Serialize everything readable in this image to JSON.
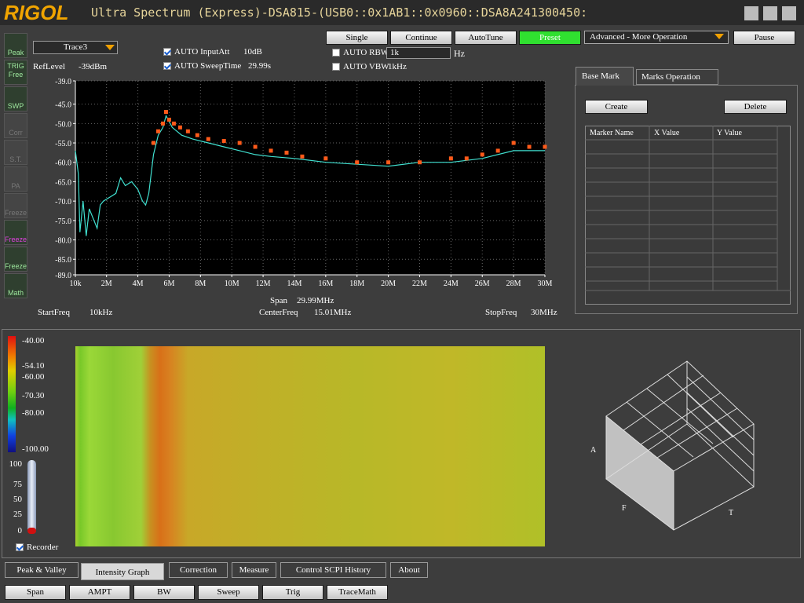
{
  "title_bar": {
    "logo": "RIGOL",
    "title": "Ultra Spectrum (Express)-DSA815-(USB0::0x1AB1::0x0960::DSA8A241300450:"
  },
  "sidebar": [
    "Peak",
    "TRIG",
    "Free",
    "SWP",
    "Corr",
    "S.T.",
    "PA",
    "Freeze",
    "Freeze",
    "Freeze",
    "Math"
  ],
  "controls": {
    "trace": "Trace3",
    "ref_level_label": "RefLevel",
    "ref_level": "-39dBm",
    "input_att_label": "AUTO InputAtt",
    "input_att": "10dB",
    "sweep_time_label": "AUTO SweepTime",
    "sweep_time": "29.99s",
    "rbw_label": "AUTO RBW",
    "rbw": "1k",
    "rbw_unit": "Hz",
    "vbw_label": "AUTO VBW",
    "vbw": "1kHz"
  },
  "toolbar": {
    "buttons": [
      "Single",
      "Continue",
      "AutoTune",
      "Preset"
    ],
    "mode": "Advanced - More Operation",
    "pause": "Pause"
  },
  "spectrum": {
    "type": "line",
    "xlim": [
      0.01,
      30
    ],
    "ylim": [
      -89,
      -39
    ],
    "grid": true,
    "xticks": [
      {
        "value": 0.01,
        "label": "10k"
      },
      {
        "value": 2,
        "label": "2M"
      },
      {
        "value": 4,
        "label": "4M"
      },
      {
        "value": 6,
        "label": "6M"
      },
      {
        "value": 8,
        "label": "8M"
      },
      {
        "value": 10,
        "label": "10M"
      },
      {
        "value": 12,
        "label": "12M"
      },
      {
        "value": 14,
        "label": "14M"
      },
      {
        "value": 16,
        "label": "16M"
      },
      {
        "value": 18,
        "label": "18M"
      },
      {
        "value": 20,
        "label": "20M"
      },
      {
        "value": 22,
        "label": "22M"
      },
      {
        "value": 24,
        "label": "24M"
      },
      {
        "value": 26,
        "label": "26M"
      },
      {
        "value": 28,
        "label": "28M"
      },
      {
        "value": 30,
        "label": "30M"
      }
    ],
    "yticks": [
      {
        "value": -39,
        "label": "-39.0"
      },
      {
        "value": -45,
        "label": "-45.0"
      },
      {
        "value": -50,
        "label": "-50.0"
      },
      {
        "value": -55,
        "label": "-55.0"
      },
      {
        "value": -60,
        "label": "-60.0"
      },
      {
        "value": -65,
        "label": "-65.0"
      },
      {
        "value": -70,
        "label": "-70.0"
      },
      {
        "value": -75,
        "label": "-75.0"
      },
      {
        "value": -80,
        "label": "-80.0"
      },
      {
        "value": -85,
        "label": "-85.0"
      },
      {
        "value": -89,
        "label": "-89.0"
      }
    ],
    "trace": {
      "color": "#40e0d0",
      "x": [
        0.01,
        0.2,
        0.3,
        0.5,
        0.7,
        0.9,
        1.2,
        1.4,
        1.6,
        1.8,
        2.2,
        2.6,
        2.9,
        3.2,
        3.6,
        4.0,
        4.3,
        4.5,
        4.7,
        5.0,
        5.3,
        5.6,
        5.8,
        6.2,
        6.8,
        7.5,
        8.5,
        9.5,
        10.5,
        11.5,
        12.5,
        14,
        16,
        18,
        20,
        22,
        24,
        26,
        28,
        30
      ],
      "values": [
        -57,
        -63,
        -78,
        -70,
        -79,
        -72,
        -75,
        -77,
        -71,
        -70,
        -69,
        -68,
        -64,
        -66,
        -65,
        -67,
        -70,
        -71,
        -68,
        -58,
        -53,
        -51,
        -48,
        -51,
        -53,
        -54,
        -55,
        -56,
        -57,
        -58,
        -58.5,
        -59,
        -60,
        -60.5,
        -61,
        -60,
        -60,
        -59,
        -57,
        -57
      ]
    },
    "max_hold": {
      "color": "#ff5a1a",
      "x": [
        5.0,
        5.3,
        5.6,
        5.8,
        6.0,
        6.3,
        6.7,
        7.2,
        7.8,
        8.5,
        9.5,
        10.5,
        11.5,
        12.5,
        13.5,
        14.5,
        16,
        18,
        20,
        22,
        24,
        25,
        26,
        27,
        28,
        29,
        30
      ],
      "values": [
        -55,
        -52,
        -50,
        -47,
        -49,
        -50,
        -51,
        -52,
        -53,
        -54,
        -54.5,
        -55,
        -56,
        -57,
        -57.5,
        -58.5,
        -59,
        -60,
        -60,
        -60,
        -59,
        -59,
        -58,
        -57,
        -55,
        -56,
        -56
      ]
    }
  },
  "freq_info": {
    "span_label": "Span",
    "span": "29.99MHz",
    "start_label": "StartFreq",
    "start": "10kHz",
    "center_label": "CenterFreq",
    "center": "15.01MHz",
    "stop_label": "StopFreq",
    "stop": "30MHz"
  },
  "markers": {
    "tabs": [
      "Base Mark",
      "Marks Operation"
    ],
    "buttons": [
      "Create",
      "Delete"
    ],
    "columns": [
      "Marker Name",
      "X Value",
      "Y Value"
    ]
  },
  "intensity": {
    "scale_labels": [
      "-40.00",
      "-54.10",
      "-60.00",
      "-70.30",
      "-80.00",
      "-100.00"
    ],
    "recorder_ticks": [
      "100",
      "75",
      "50",
      "25",
      "0"
    ],
    "recorder": "Recorder",
    "axis_labels": [
      "A",
      "F",
      "T"
    ]
  },
  "bottom_tabs": [
    "Peak & Valley",
    "Intensity Graph",
    "Correction",
    "Measure",
    "Control SCPI History",
    "About"
  ],
  "bottom_buttons": [
    "Span",
    "AMPT",
    "BW",
    "Sweep",
    "Trig",
    "TraceMath"
  ]
}
